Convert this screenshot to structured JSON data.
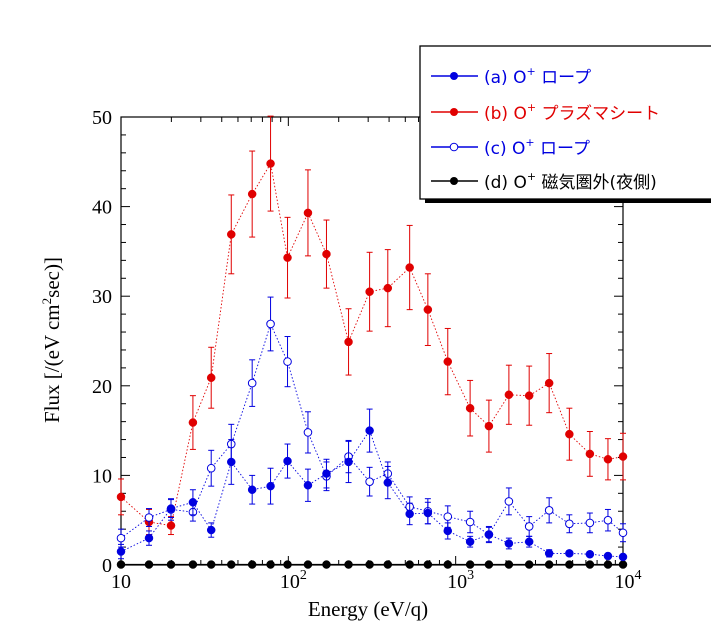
{
  "chart_data": {
    "type": "scatter",
    "xlabel": "Energy (eV/q)",
    "ylabel": "Flux [/(eV cm",
    "ylabel_sup": "2",
    "ylabel_tail": "sec)]",
    "xscale": "log",
    "xlim": [
      10,
      10000
    ],
    "ylim": [
      0,
      50
    ],
    "grid": false,
    "legend_position": "top-right",
    "x_tick_labels": [
      {
        "base": "10",
        "exp": ""
      },
      {
        "base": "10",
        "exp": "2"
      },
      {
        "base": "10",
        "exp": "3"
      },
      {
        "base": "10",
        "exp": "4"
      }
    ],
    "y_tick_labels": [
      "0",
      "10",
      "20",
      "30",
      "40",
      "50"
    ],
    "energies": [
      10,
      14.7,
      19.9,
      26.9,
      34.6,
      45.6,
      60.8,
      78.3,
      98.9,
      131,
      169,
      229,
      306,
      393,
      531,
      682,
      897,
      1220,
      1580,
      2080,
      2750,
      3620,
      4780,
      6340,
      8130,
      10000
    ],
    "series": [
      {
        "name": "(a) O",
        "name_sup": "+",
        "name_tail": " ロープ",
        "color": "#0000e0",
        "marker": "filled",
        "values": [
          1.5,
          3.0,
          6.3,
          7.0,
          3.9,
          11.5,
          8.4,
          8.8,
          11.6,
          8.9,
          10.2,
          11.5,
          15.0,
          9.2,
          5.7,
          5.8,
          3.8,
          2.6,
          3.4,
          2.4,
          2.6,
          1.3,
          1.3,
          1.2,
          1.0,
          0.9
        ],
        "errors": [
          0.8,
          0.8,
          1.0,
          1.4,
          0.8,
          2.5,
          1.6,
          2.0,
          1.9,
          1.8,
          1.6,
          2.3,
          2.4,
          1.8,
          1.2,
          1.2,
          0.9,
          0.6,
          0.9,
          0.6,
          0.6,
          0.4,
          0.3,
          0.3,
          0.3,
          0.3
        ]
      },
      {
        "name": "(b) O",
        "name_sup": "+",
        "name_tail": " プラズマシート",
        "color": "#e00000",
        "marker": "filled",
        "values": [
          7.6,
          4.8,
          4.4,
          15.9,
          20.9,
          36.9,
          41.4,
          44.8,
          34.3,
          39.3,
          34.7,
          24.9,
          30.5,
          30.9,
          33.2,
          28.5,
          22.7,
          17.5,
          15.5,
          19.0,
          18.9,
          20.3,
          14.6,
          12.4,
          11.8,
          12.1
        ],
        "errors": [
          2.0,
          1.4,
          1.0,
          3.0,
          3.4,
          4.4,
          4.8,
          5.3,
          4.5,
          4.8,
          3.8,
          3.7,
          4.4,
          4.3,
          4.7,
          4.0,
          3.7,
          3.1,
          2.9,
          3.3,
          3.3,
          3.3,
          2.9,
          2.5,
          2.3,
          2.6
        ]
      },
      {
        "name": "(c) O",
        "name_sup": "+",
        "name_tail": " ロープ",
        "color": "#0000e0",
        "marker": "open",
        "values": [
          3.0,
          5.3,
          6.2,
          5.9,
          10.8,
          13.5,
          20.3,
          26.9,
          22.7,
          14.8,
          9.9,
          12.1,
          9.3,
          10.2,
          6.5,
          6.0,
          5.4,
          4.8,
          3.4,
          7.1,
          4.3,
          6.1,
          4.6,
          4.7,
          5.0,
          3.6
        ],
        "errors": [
          1.0,
          1.0,
          1.2,
          1.0,
          2.0,
          2.2,
          2.6,
          3.0,
          2.8,
          2.3,
          1.6,
          1.8,
          1.6,
          1.3,
          1.1,
          1.4,
          1.2,
          1.2,
          0.8,
          1.5,
          1.1,
          1.4,
          1.0,
          1.1,
          1.2,
          1.0
        ]
      },
      {
        "name": "(d) O",
        "name_sup": "+",
        "name_tail": " 磁気圏外(夜側)",
        "color": "#000000",
        "marker": "filled",
        "values": [
          0.05,
          0.05,
          0.05,
          0.05,
          0.05,
          0.05,
          0.05,
          0.05,
          0.05,
          0.05,
          0.05,
          0.05,
          0.05,
          0.05,
          0.05,
          0.05,
          0.05,
          0.05,
          0.05,
          0.05,
          0.05,
          0.05,
          0.05,
          0.05,
          0.05,
          0.05
        ],
        "errors": [
          0,
          0,
          0,
          0,
          0,
          0,
          0,
          0,
          0,
          0,
          0,
          0,
          0,
          0,
          0,
          0,
          0,
          0,
          0,
          0,
          0,
          0,
          0,
          0,
          0,
          0
        ]
      }
    ]
  }
}
